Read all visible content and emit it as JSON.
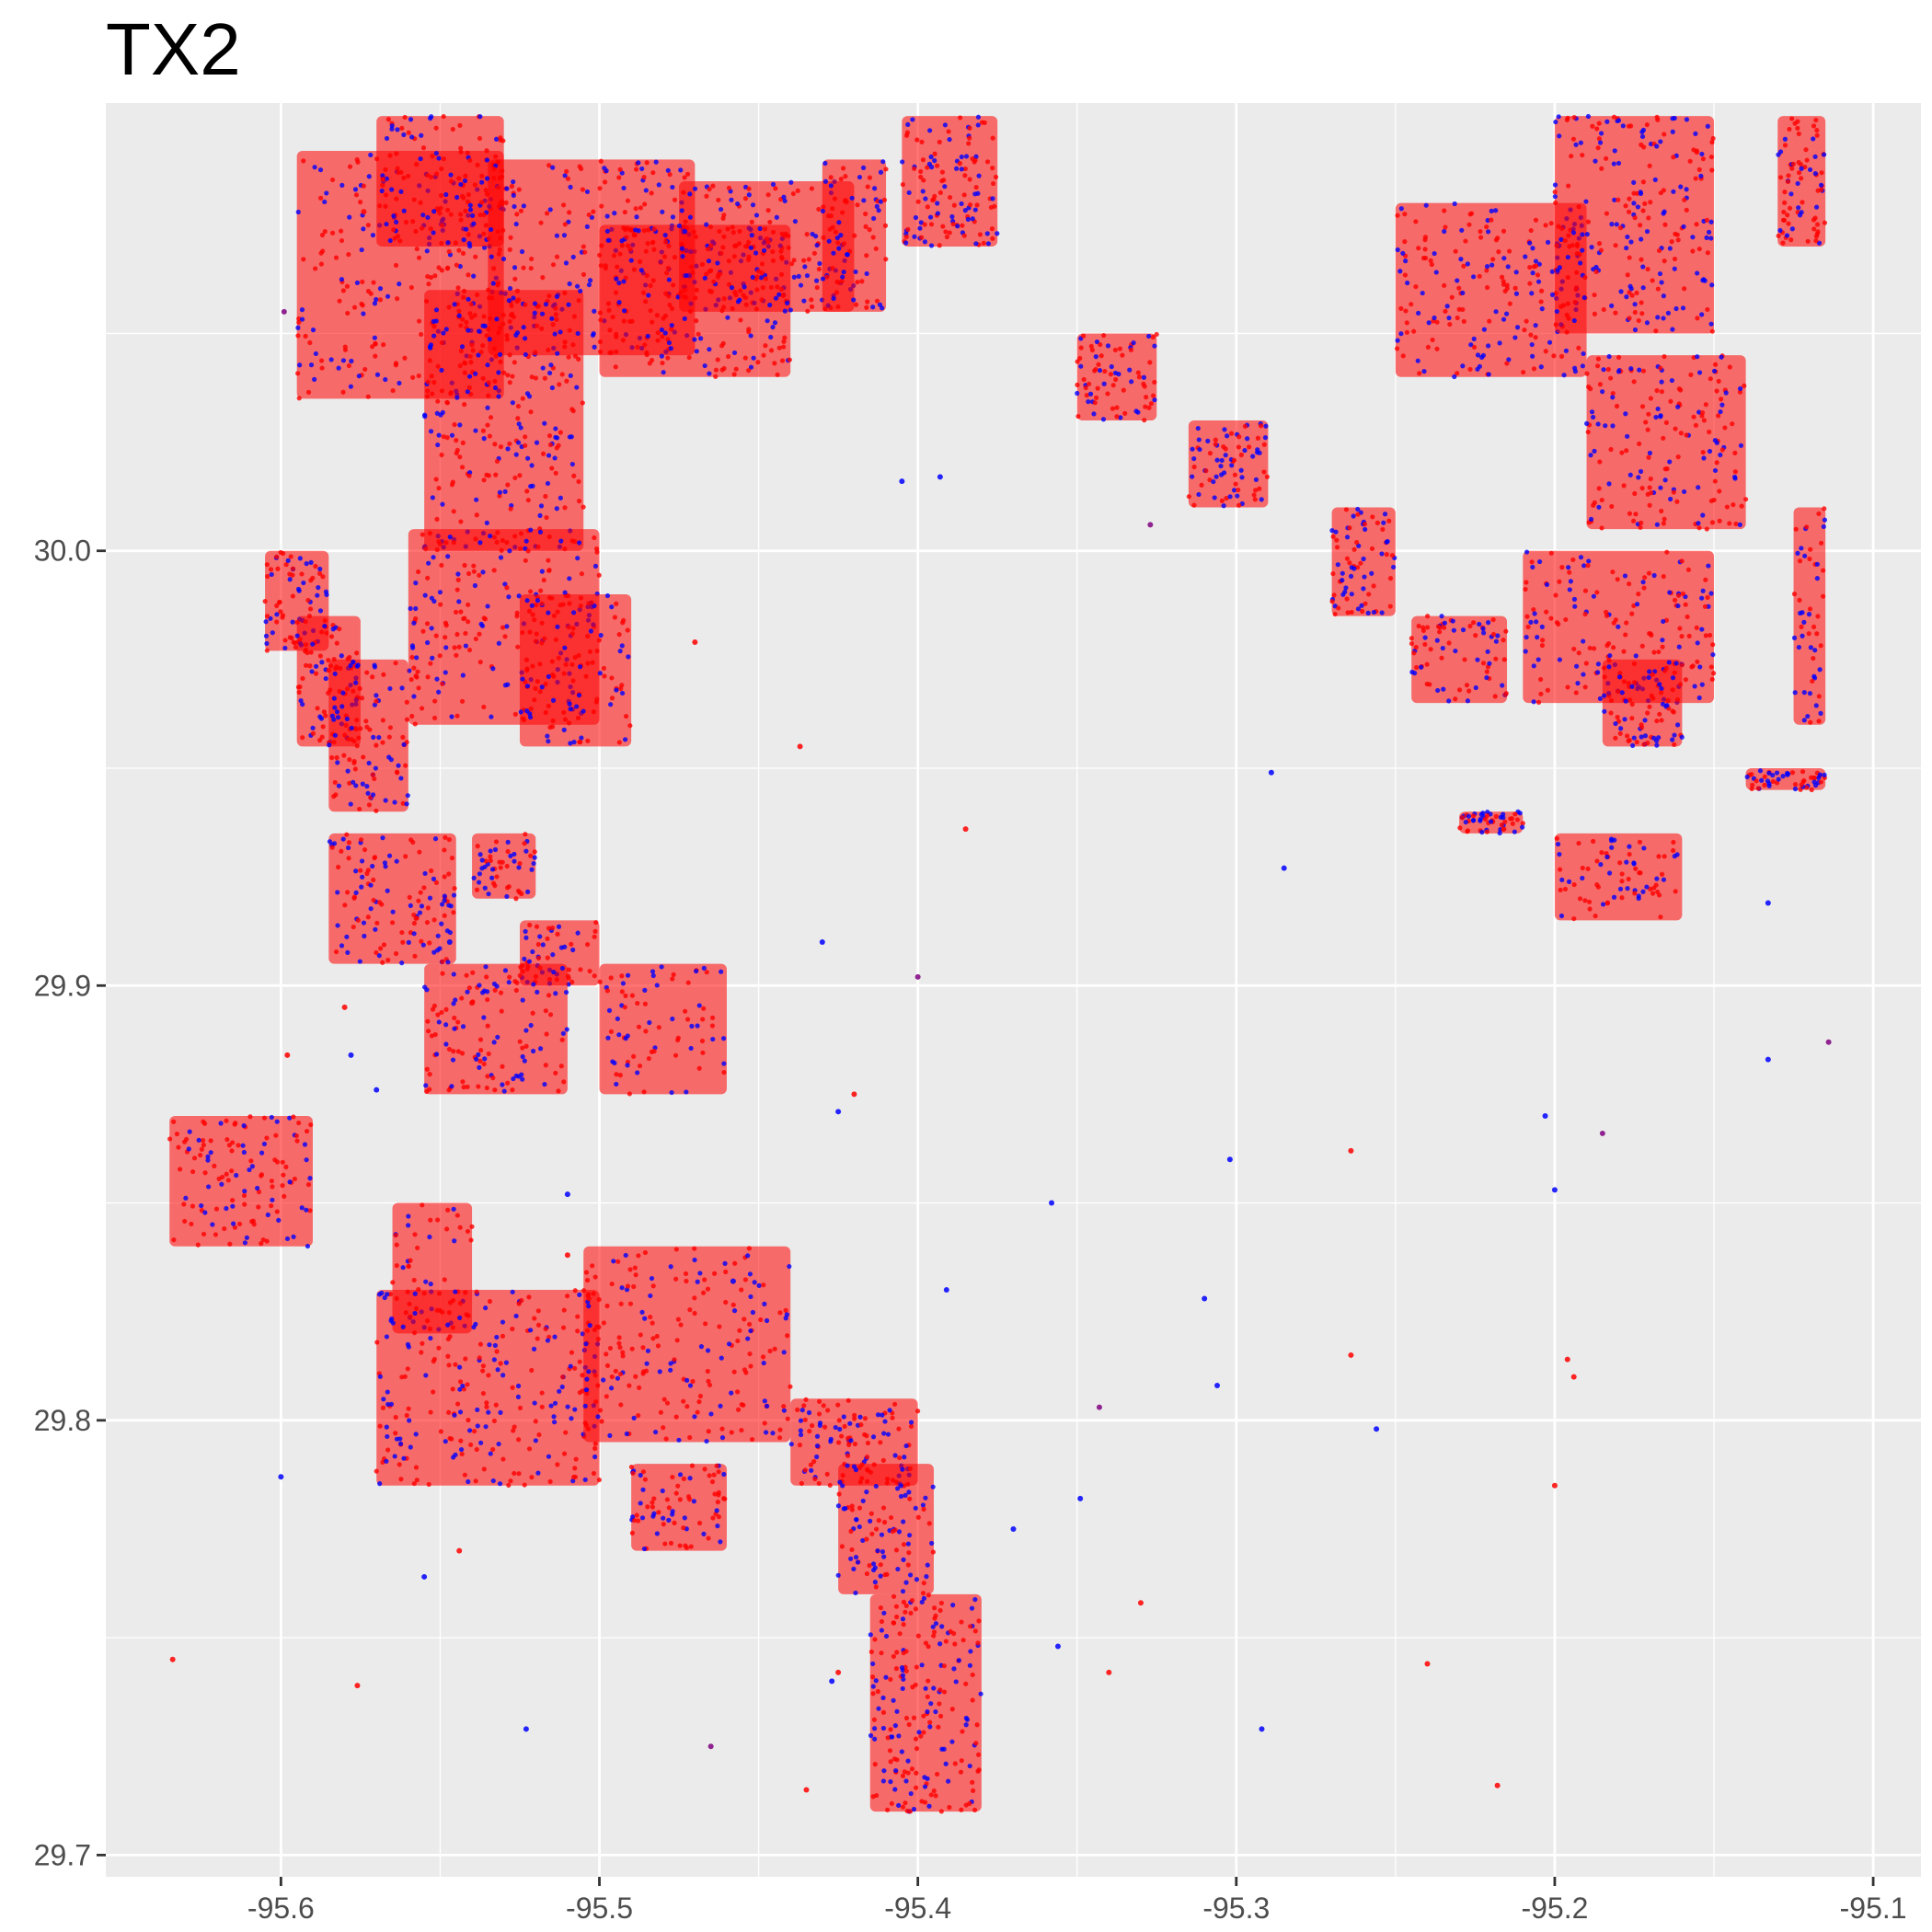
{
  "chart_data": {
    "type": "scatter",
    "title": "TX2",
    "xlabel": "",
    "ylabel": "",
    "xlim": [
      -95.655,
      -95.085
    ],
    "ylim": [
      29.695,
      30.103
    ],
    "x_ticks": [
      -95.6,
      -95.5,
      -95.4,
      -95.3,
      -95.2,
      -95.1
    ],
    "x_tick_labels": [
      "-95.6",
      "-95.5",
      "-95.4",
      "-95.3",
      "-95.2",
      "-95.1"
    ],
    "y_ticks": [
      29.7,
      29.8,
      29.9,
      30.0
    ],
    "y_tick_labels": [
      "29.7",
      "29.8",
      "29.9",
      "30.0"
    ],
    "grid": true,
    "legend": "none",
    "colors": {
      "panel": "#ebebeb",
      "grid": "#ffffff",
      "series_a": "#ff0000",
      "series_b": "#0000ff"
    },
    "clusters": [
      {
        "x": [
          -95.595,
          -95.53
        ],
        "y": [
          30.035,
          30.092
        ],
        "w": 0.9
      },
      {
        "x": [
          -95.555,
          -95.505
        ],
        "y": [
          30.0,
          30.06
        ],
        "w": 1.0
      },
      {
        "x": [
          -95.535,
          -95.47
        ],
        "y": [
          30.045,
          30.09
        ],
        "w": 0.9
      },
      {
        "x": [
          -95.5,
          -95.44
        ],
        "y": [
          30.04,
          30.075
        ],
        "w": 0.8
      },
      {
        "x": [
          -95.475,
          -95.42
        ],
        "y": [
          30.055,
          30.085
        ],
        "w": 0.6
      },
      {
        "x": [
          -95.57,
          -95.53
        ],
        "y": [
          30.07,
          30.1
        ],
        "w": 0.5
      },
      {
        "x": [
          -95.405,
          -95.375
        ],
        "y": [
          30.07,
          30.1
        ],
        "w": 0.5
      },
      {
        "x": [
          -95.43,
          -95.41
        ],
        "y": [
          30.055,
          30.09
        ],
        "w": 0.3
      },
      {
        "x": [
          -95.605,
          -95.585
        ],
        "y": [
          29.977,
          30.0
        ],
        "w": 0.3
      },
      {
        "x": [
          -95.595,
          -95.575
        ],
        "y": [
          29.955,
          29.985
        ],
        "w": 0.3
      },
      {
        "x": [
          -95.56,
          -95.5
        ],
        "y": [
          29.96,
          30.005
        ],
        "w": 0.8
      },
      {
        "x": [
          -95.585,
          -95.56
        ],
        "y": [
          29.94,
          29.975
        ],
        "w": 0.4
      },
      {
        "x": [
          -95.525,
          -95.49
        ],
        "y": [
          29.955,
          29.99
        ],
        "w": 0.4
      },
      {
        "x": [
          -95.585,
          -95.545
        ],
        "y": [
          29.905,
          29.935
        ],
        "w": 0.5
      },
      {
        "x": [
          -95.54,
          -95.52
        ],
        "y": [
          29.92,
          29.935
        ],
        "w": 0.2
      },
      {
        "x": [
          -95.525,
          -95.5
        ],
        "y": [
          29.9,
          29.915
        ],
        "w": 0.2
      },
      {
        "x": [
          -95.555,
          -95.51
        ],
        "y": [
          29.875,
          29.905
        ],
        "w": 0.5
      },
      {
        "x": [
          -95.5,
          -95.46
        ],
        "y": [
          29.875,
          29.905
        ],
        "w": 0.3
      },
      {
        "x": [
          -95.635,
          -95.59
        ],
        "y": [
          29.84,
          29.87
        ],
        "w": 0.5
      },
      {
        "x": [
          -95.565,
          -95.54
        ],
        "y": [
          29.82,
          29.85
        ],
        "w": 0.2
      },
      {
        "x": [
          -95.57,
          -95.5
        ],
        "y": [
          29.785,
          29.83
        ],
        "w": 1.0
      },
      {
        "x": [
          -95.505,
          -95.44
        ],
        "y": [
          29.795,
          29.84
        ],
        "w": 0.8
      },
      {
        "x": [
          -95.49,
          -95.46
        ],
        "y": [
          29.77,
          29.79
        ],
        "w": 0.3
      },
      {
        "x": [
          -95.44,
          -95.4
        ],
        "y": [
          29.785,
          29.805
        ],
        "w": 0.4
      },
      {
        "x": [
          -95.425,
          -95.395
        ],
        "y": [
          29.76,
          29.79
        ],
        "w": 0.4
      },
      {
        "x": [
          -95.415,
          -95.38
        ],
        "y": [
          29.71,
          29.76
        ],
        "w": 0.8
      },
      {
        "x": [
          -95.35,
          -95.325
        ],
        "y": [
          30.03,
          30.05
        ],
        "w": 0.3
      },
      {
        "x": [
          -95.315,
          -95.29
        ],
        "y": [
          30.01,
          30.03
        ],
        "w": 0.3
      },
      {
        "x": [
          -95.25,
          -95.19
        ],
        "y": [
          30.04,
          30.08
        ],
        "w": 0.8
      },
      {
        "x": [
          -95.2,
          -95.15
        ],
        "y": [
          30.05,
          30.1
        ],
        "w": 0.9
      },
      {
        "x": [
          -95.19,
          -95.14
        ],
        "y": [
          30.005,
          30.045
        ],
        "w": 0.7
      },
      {
        "x": [
          -95.21,
          -95.15
        ],
        "y": [
          29.965,
          30.0
        ],
        "w": 0.7
      },
      {
        "x": [
          -95.185,
          -95.16
        ],
        "y": [
          29.955,
          29.975
        ],
        "w": 0.3
      },
      {
        "x": [
          -95.245,
          -95.215
        ],
        "y": [
          29.965,
          29.985
        ],
        "w": 0.3
      },
      {
        "x": [
          -95.27,
          -95.25
        ],
        "y": [
          29.985,
          30.01
        ],
        "w": 0.3
      },
      {
        "x": [
          -95.13,
          -95.115
        ],
        "y": [
          30.07,
          30.1
        ],
        "w": 0.3
      },
      {
        "x": [
          -95.2,
          -95.16
        ],
        "y": [
          29.915,
          29.935
        ],
        "w": 0.3
      },
      {
        "x": [
          -95.23,
          -95.21
        ],
        "y": [
          29.935,
          29.94
        ],
        "w": 0.2
      },
      {
        "x": [
          -95.14,
          -95.115
        ],
        "y": [
          29.945,
          29.95
        ],
        "w": 0.2
      },
      {
        "x": [
          -95.125,
          -95.115
        ],
        "y": [
          29.96,
          30.01
        ],
        "w": 0.2
      }
    ],
    "scatter_points": [
      {
        "x": -95.4,
        "y": 29.902,
        "c": "purple"
      },
      {
        "x": -95.42,
        "y": 29.875,
        "c": "red"
      },
      {
        "x": -95.425,
        "y": 29.871,
        "c": "blue"
      },
      {
        "x": -95.385,
        "y": 29.936,
        "c": "red"
      },
      {
        "x": -95.43,
        "y": 29.91,
        "c": "blue"
      },
      {
        "x": -95.437,
        "y": 29.955,
        "c": "red"
      },
      {
        "x": -95.358,
        "y": 29.85,
        "c": "blue"
      },
      {
        "x": -95.302,
        "y": 29.86,
        "c": "blue"
      },
      {
        "x": -95.306,
        "y": 29.808,
        "c": "blue"
      },
      {
        "x": -95.31,
        "y": 29.828,
        "c": "blue"
      },
      {
        "x": -95.264,
        "y": 29.862,
        "c": "red"
      },
      {
        "x": -95.264,
        "y": 29.815,
        "c": "red"
      },
      {
        "x": -95.256,
        "y": 29.798,
        "c": "blue"
      },
      {
        "x": -95.34,
        "y": 29.742,
        "c": "red"
      },
      {
        "x": -95.33,
        "y": 29.758,
        "c": "red"
      },
      {
        "x": -95.292,
        "y": 29.729,
        "c": "blue"
      },
      {
        "x": -95.24,
        "y": 29.744,
        "c": "red"
      },
      {
        "x": -95.218,
        "y": 29.716,
        "c": "red"
      },
      {
        "x": -95.2,
        "y": 29.785,
        "c": "red"
      },
      {
        "x": -95.194,
        "y": 29.81,
        "c": "red"
      },
      {
        "x": -95.196,
        "y": 29.814,
        "c": "red"
      },
      {
        "x": -95.2,
        "y": 29.853,
        "c": "blue"
      },
      {
        "x": -95.203,
        "y": 29.87,
        "c": "blue"
      },
      {
        "x": -95.185,
        "y": 29.866,
        "c": "purple"
      },
      {
        "x": -95.133,
        "y": 29.883,
        "c": "blue"
      },
      {
        "x": -95.114,
        "y": 29.887,
        "c": "purple"
      },
      {
        "x": -95.133,
        "y": 29.919,
        "c": "blue"
      },
      {
        "x": -95.285,
        "y": 29.927,
        "c": "blue"
      },
      {
        "x": -95.289,
        "y": 29.949,
        "c": "blue"
      },
      {
        "x": -95.634,
        "y": 29.745,
        "c": "red"
      },
      {
        "x": -95.576,
        "y": 29.739,
        "c": "red"
      },
      {
        "x": -95.544,
        "y": 29.77,
        "c": "red"
      },
      {
        "x": -95.523,
        "y": 29.729,
        "c": "blue"
      },
      {
        "x": -95.465,
        "y": 29.725,
        "c": "purple"
      },
      {
        "x": -95.555,
        "y": 29.764,
        "c": "blue"
      },
      {
        "x": -95.6,
        "y": 29.787,
        "c": "blue"
      },
      {
        "x": -95.578,
        "y": 29.884,
        "c": "blue"
      },
      {
        "x": -95.54,
        "y": 29.896,
        "c": "red"
      },
      {
        "x": -95.51,
        "y": 29.852,
        "c": "blue"
      },
      {
        "x": -95.598,
        "y": 29.884,
        "c": "red"
      },
      {
        "x": -95.57,
        "y": 29.876,
        "c": "blue"
      },
      {
        "x": -95.58,
        "y": 29.895,
        "c": "red"
      },
      {
        "x": -95.547,
        "y": 29.91,
        "c": "blue"
      },
      {
        "x": -95.425,
        "y": 29.742,
        "c": "red"
      },
      {
        "x": -95.435,
        "y": 29.715,
        "c": "red"
      },
      {
        "x": -95.427,
        "y": 29.74,
        "c": "blue"
      },
      {
        "x": -95.356,
        "y": 29.748,
        "c": "blue"
      },
      {
        "x": -95.37,
        "y": 29.775,
        "c": "blue"
      },
      {
        "x": -95.349,
        "y": 29.782,
        "c": "blue"
      },
      {
        "x": -95.343,
        "y": 29.803,
        "c": "purple"
      },
      {
        "x": -95.391,
        "y": 29.83,
        "c": "blue"
      },
      {
        "x": -95.405,
        "y": 30.016,
        "c": "blue"
      },
      {
        "x": -95.393,
        "y": 30.017,
        "c": "blue"
      },
      {
        "x": -95.327,
        "y": 30.006,
        "c": "purple"
      },
      {
        "x": -95.574,
        "y": 30.078,
        "c": "red"
      },
      {
        "x": -95.599,
        "y": 30.055,
        "c": "purple"
      },
      {
        "x": -95.47,
        "y": 29.979,
        "c": "red"
      },
      {
        "x": -95.458,
        "y": 29.832,
        "c": "blue"
      },
      {
        "x": -95.51,
        "y": 29.838,
        "c": "red"
      }
    ]
  }
}
